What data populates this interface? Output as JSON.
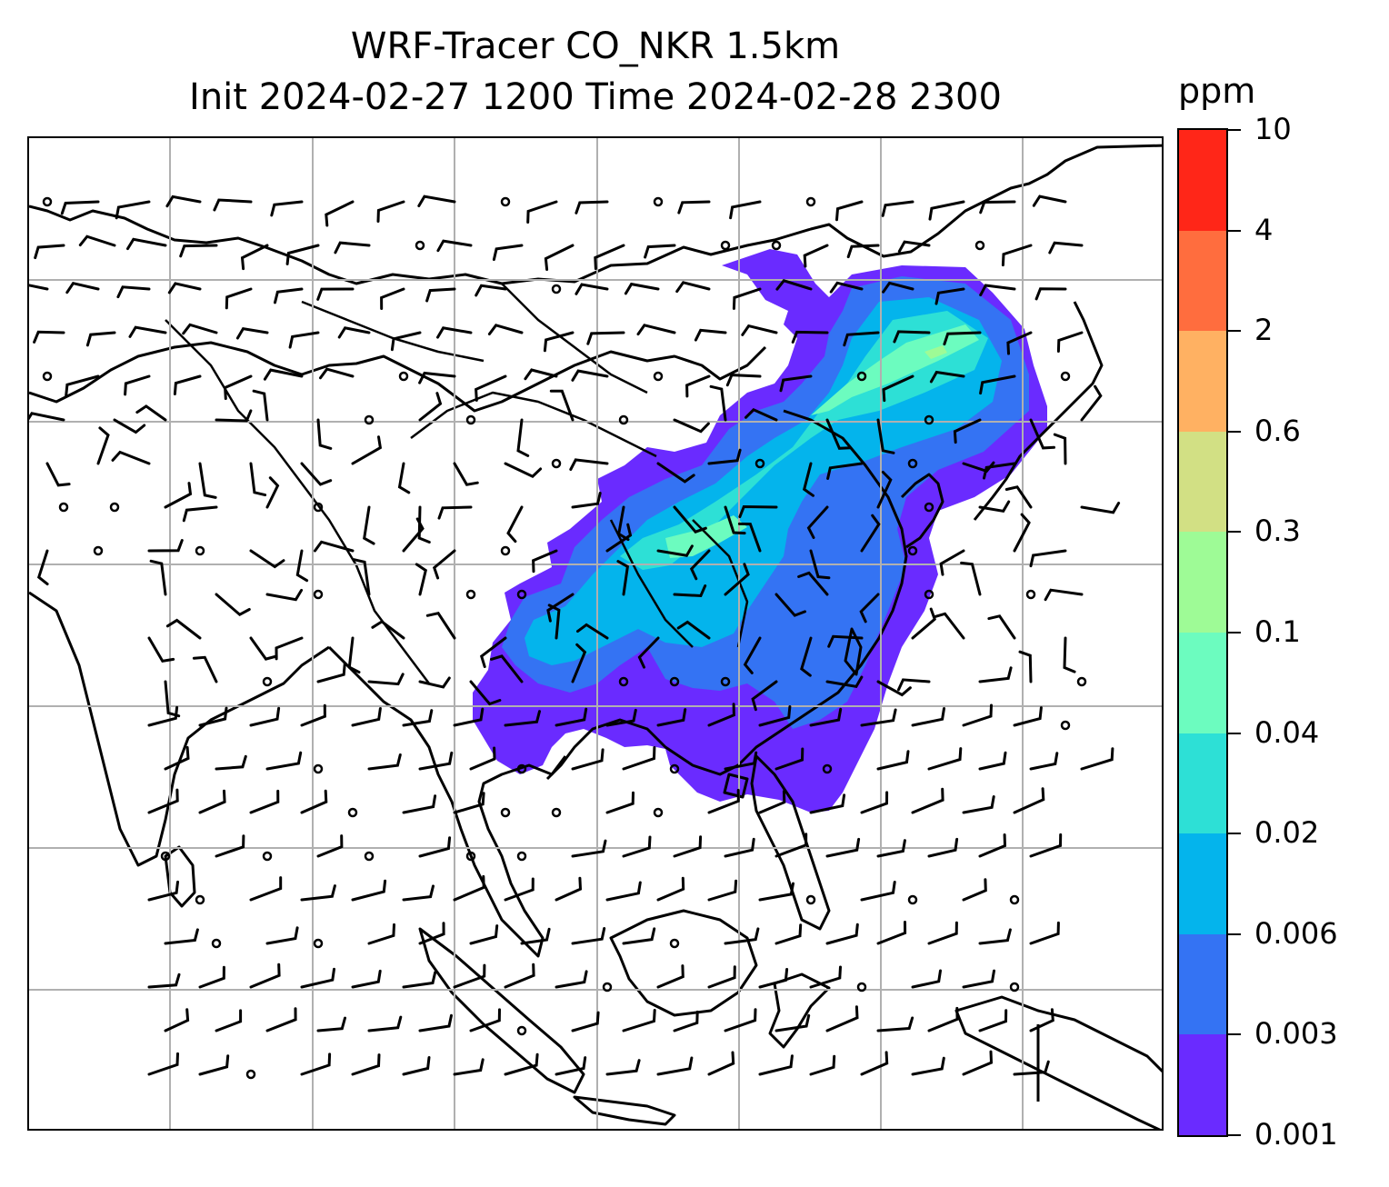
{
  "title": {
    "line1": "WRF-Tracer CO_NKR 1.5km",
    "line2": "Init 2024-02-27 1200 Time 2024-02-28 2300"
  },
  "colorbar": {
    "unit": "ppm",
    "levels": [
      "0.001",
      "0.003",
      "0.006",
      "0.02",
      "0.04",
      "0.1",
      "0.3",
      "0.6",
      "2",
      "4",
      "10"
    ],
    "colors": [
      "#6a2bff",
      "#3473f3",
      "#04b4ec",
      "#2de0d6",
      "#6cfcbf",
      "#9efb96",
      "#d2e084",
      "#ffb162",
      "#ff6d3e",
      "#ff2618"
    ]
  },
  "map": {
    "gridlines": true,
    "coastline_color": "#000000",
    "grid_color": "#b0b0b0"
  }
}
